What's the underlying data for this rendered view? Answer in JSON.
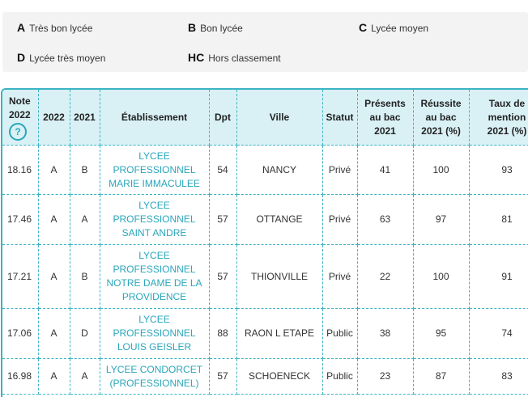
{
  "legend": [
    {
      "code": "A",
      "label": "Très bon lycée"
    },
    {
      "code": "B",
      "label": "Bon lycée"
    },
    {
      "code": "C",
      "label": "Lycée moyen"
    },
    {
      "code": "D",
      "label": "Lycée très moyen"
    },
    {
      "code": "HC",
      "label": "Hors classement"
    }
  ],
  "table": {
    "headers": {
      "note_line1": "Note",
      "note_line2": "2022",
      "help": "?",
      "y2022": "2022",
      "y2021": "2021",
      "etablissement": "Établissement",
      "dpt": "Dpt",
      "ville": "Ville",
      "statut": "Statut",
      "presents_1": "Présents",
      "presents_2": "au bac",
      "presents_3": "2021",
      "reussite_1": "Réussite",
      "reussite_2": "au bac",
      "reussite_3": "2021 (%)",
      "mention_1": "Taux de",
      "mention_2": "mention",
      "mention_3": "2021 (%)"
    },
    "rows": [
      {
        "note": "18.16",
        "r2022": "A",
        "r2021": "B",
        "etab": [
          "LYCEE",
          "PROFESSIONNEL",
          "MARIE IMMACULEE"
        ],
        "dpt": "54",
        "ville": "NANCY",
        "statut": "Privé",
        "presents": "41",
        "reussite": "100",
        "mention": "93"
      },
      {
        "note": "17.46",
        "r2022": "A",
        "r2021": "A",
        "etab": [
          "LYCEE",
          "PROFESSIONNEL",
          "SAINT ANDRE"
        ],
        "dpt": "57",
        "ville": "OTTANGE",
        "statut": "Privé",
        "presents": "63",
        "reussite": "97",
        "mention": "81"
      },
      {
        "note": "17.21",
        "r2022": "A",
        "r2021": "B",
        "etab": [
          "LYCEE",
          "PROFESSIONNEL",
          "NOTRE DAME DE LA",
          "PROVIDENCE"
        ],
        "dpt": "57",
        "ville": "THIONVILLE",
        "statut": "Privé",
        "presents": "22",
        "reussite": "100",
        "mention": "91"
      },
      {
        "note": "17.06",
        "r2022": "A",
        "r2021": "D",
        "etab": [
          "LYCEE",
          "PROFESSIONNEL",
          "LOUIS GEISLER"
        ],
        "dpt": "88",
        "ville": "RAON L ETAPE",
        "statut": "Public",
        "presents": "38",
        "reussite": "95",
        "mention": "74"
      },
      {
        "note": "16.98",
        "r2022": "A",
        "r2021": "A",
        "etab": [
          "LYCEE CONDORCET",
          "(PROFESSIONNEL)"
        ],
        "dpt": "57",
        "ville": "SCHOENECK",
        "statut": "Public",
        "presents": "23",
        "reussite": "87",
        "mention": "83"
      }
    ]
  },
  "colors": {
    "accent": "#3bb3c3",
    "link": "#2aa6ba",
    "header_bg": "#d9f1f5",
    "legend_bg": "#f3f3f3"
  }
}
